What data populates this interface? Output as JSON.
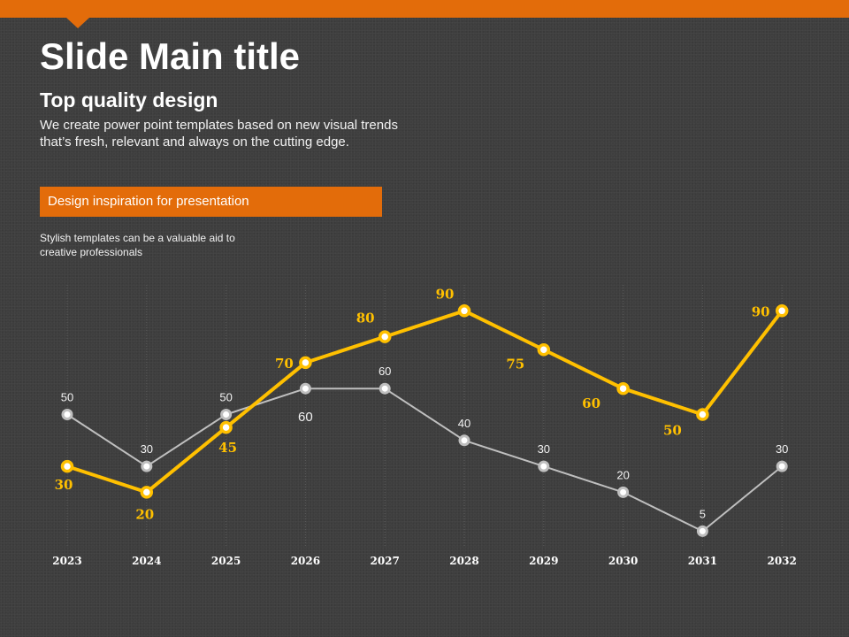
{
  "slide": {
    "title": "Slide Main title",
    "subtitle": "Top quality design",
    "body_line1": "We create power point templates based on new visual trends",
    "body_line2": "that’s fresh, relevant and always on the cutting edge.",
    "banner_text": "Design inspiration for presentation",
    "note_line1": "Stylish templates can be a valuable aid to",
    "note_line2": "creative professionals"
  },
  "colors": {
    "accent": "#e36c0a",
    "series_gold": "#ffc000",
    "series_gray": "#bfbfbf",
    "label_gold": "#ffc000",
    "label_gray": "#f2f2f2"
  },
  "chart_data": {
    "type": "line",
    "categories": [
      "2023",
      "2024",
      "2025",
      "2026",
      "2027",
      "2028",
      "2029",
      "2030",
      "2031",
      "2032"
    ],
    "ylim": [
      0,
      100
    ],
    "grid": "vertical",
    "series": [
      {
        "values": [
          50,
          30,
          50,
          60,
          60,
          40,
          30,
          20,
          5,
          30
        ],
        "color": "#bfbfbf"
      },
      {
        "values": [
          30,
          20,
          45,
          70,
          80,
          90,
          75,
          60,
          50,
          90
        ],
        "color": "#ffc000"
      }
    ]
  }
}
